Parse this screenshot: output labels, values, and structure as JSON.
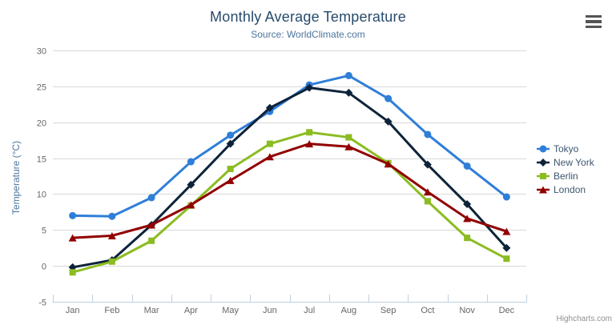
{
  "chart_data": {
    "type": "line",
    "title": "Monthly Average Temperature",
    "subtitle": "Source: WorldClimate.com",
    "xlabel": "",
    "ylabel": "Temperature (°C)",
    "ylim": [
      -5,
      30
    ],
    "yticks": [
      -5,
      0,
      5,
      10,
      15,
      20,
      25,
      30
    ],
    "grid": true,
    "legend_position": "right",
    "categories": [
      "Jan",
      "Feb",
      "Mar",
      "Apr",
      "May",
      "Jun",
      "Jul",
      "Aug",
      "Sep",
      "Oct",
      "Nov",
      "Dec"
    ],
    "series": [
      {
        "name": "Tokyo",
        "color": "#2f7ed8",
        "marker": "circle",
        "values": [
          7.0,
          6.9,
          9.5,
          14.5,
          18.2,
          21.5,
          25.2,
          26.5,
          23.3,
          18.3,
          13.9,
          9.6
        ]
      },
      {
        "name": "New York",
        "color": "#0d233a",
        "marker": "diamond",
        "values": [
          -0.2,
          0.8,
          5.7,
          11.3,
          17.0,
          22.0,
          24.8,
          24.1,
          20.1,
          14.1,
          8.6,
          2.5
        ]
      },
      {
        "name": "Berlin",
        "color": "#8bbc21",
        "marker": "square",
        "values": [
          -0.9,
          0.6,
          3.5,
          8.4,
          13.5,
          17.0,
          18.6,
          17.9,
          14.3,
          9.0,
          3.9,
          1.0
        ]
      },
      {
        "name": "London",
        "color": "#910000",
        "marker": "triangle",
        "values": [
          3.9,
          4.2,
          5.7,
          8.5,
          11.9,
          15.2,
          17.0,
          16.6,
          14.2,
          10.3,
          6.6,
          4.8
        ]
      }
    ]
  },
  "credits": {
    "text": "Highcharts.com"
  },
  "icons": {
    "context_menu": "hamburger-icon"
  },
  "ui_colors": {
    "title": "#274b6d",
    "subtitle": "#4d759e",
    "axis_title": "#4d759e",
    "tick_label": "#666666",
    "grid_line": "#d8d8d8",
    "axis_line": "#c0d0e0",
    "legend_text": "#3e576f",
    "credit": "#909090",
    "menu_icon": "#555555"
  }
}
